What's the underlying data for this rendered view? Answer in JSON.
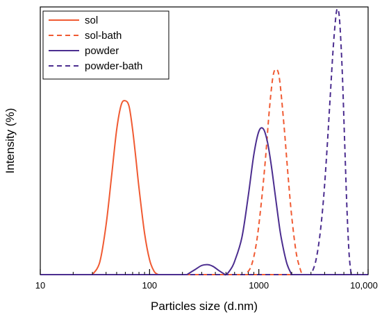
{
  "chart_data": {
    "type": "line",
    "title": "",
    "xlabel": "Particles size (d.nm)",
    "ylabel": "Intensity (%)",
    "x_scale": "log",
    "xlim": [
      10,
      10000
    ],
    "ylim": [
      0,
      32
    ],
    "x_ticks": [
      {
        "value": 10,
        "label": "10"
      },
      {
        "value": 100,
        "label": "100"
      },
      {
        "value": 1000,
        "label": "1000"
      },
      {
        "value": 10000,
        "label": "10,000"
      }
    ],
    "y_ticks_shown": false,
    "grid": false,
    "legend": {
      "placement": "top-left"
    },
    "series": [
      {
        "name": "sol",
        "color": "#f05a32",
        "style": "solid",
        "x": [
          30,
          35,
          40,
          45,
          50,
          55,
          60,
          65,
          70,
          75,
          80,
          90,
          100,
          110,
          120
        ],
        "y": [
          0,
          1.5,
          6.0,
          12.0,
          17.5,
          20.5,
          21.0,
          20.3,
          17.5,
          14.0,
          10.5,
          5.0,
          1.8,
          0.4,
          0
        ]
      },
      {
        "name": "sol-bath",
        "color": "#f05a32",
        "style": "dashed",
        "x": [
          750,
          850,
          950,
          1050,
          1150,
          1250,
          1350,
          1450,
          1550,
          1700,
          1850,
          2000,
          2200,
          2400,
          2500
        ],
        "y": [
          0,
          1.0,
          3.8,
          8.5,
          14.0,
          20.0,
          24.0,
          24.8,
          23.5,
          18.0,
          12.0,
          7.0,
          2.6,
          0.6,
          0
        ]
      },
      {
        "name": "powder",
        "color": "#4b2d8f",
        "style": "solid",
        "x": [
          220,
          260,
          300,
          340,
          380,
          430,
          480,
          500,
          550,
          600,
          700,
          800,
          900,
          1000,
          1100,
          1200,
          1300,
          1400,
          1500,
          1600,
          1800,
          2000
        ],
        "y": [
          0,
          0.6,
          1.1,
          1.2,
          1.0,
          0.5,
          0.1,
          0,
          0.6,
          1.6,
          4.5,
          9.5,
          14.5,
          17.3,
          17.6,
          16.0,
          13.2,
          10.0,
          7.0,
          4.5,
          1.4,
          0
        ]
      },
      {
        "name": "powder-bath",
        "color": "#4b2d8f",
        "style": "dashed",
        "x": [
          3000,
          3300,
          3600,
          3900,
          4200,
          4500,
          4800,
          5100,
          5300,
          5500,
          5800,
          6100,
          6400,
          6700,
          7000
        ],
        "y": [
          0,
          1.5,
          4.5,
          9.0,
          15.0,
          21.5,
          27.5,
          31.5,
          32.0,
          30.5,
          24.5,
          16.0,
          8.0,
          2.5,
          0
        ]
      }
    ]
  }
}
